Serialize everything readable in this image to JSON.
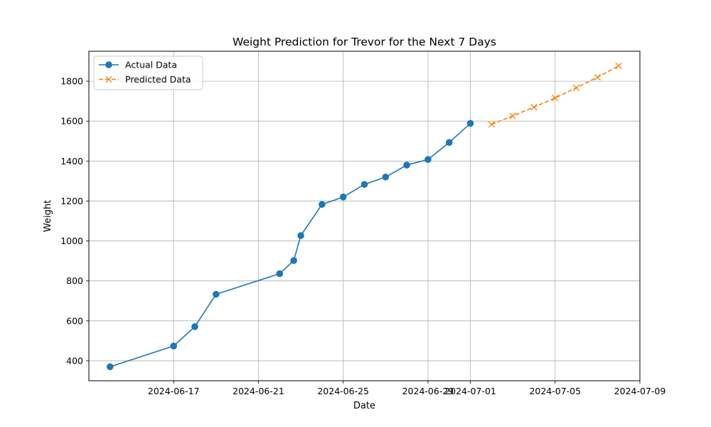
{
  "chart_data": {
    "type": "line",
    "title": "Weight Prediction for Trevor for the Next 7 Days",
    "xlabel": "Date",
    "ylabel": "Weight",
    "xlim": [
      "2024-06-13",
      "2024-07-09"
    ],
    "ylim": [
      300,
      1950
    ],
    "x_ticks": [
      "2024-06-17",
      "2024-06-21",
      "2024-06-25",
      "2024-06-29",
      "2024-07-01",
      "2024-07-05",
      "2024-07-09"
    ],
    "y_ticks": [
      400,
      600,
      800,
      1000,
      1200,
      1400,
      1600,
      1800
    ],
    "grid": true,
    "legend_position": "top-left",
    "series": [
      {
        "name": "Actual Data",
        "color": "#1f77b4",
        "line_style": "solid",
        "marker": "circle",
        "points": [
          {
            "x": "2024-06-14",
            "y": 370
          },
          {
            "x": "2024-06-17",
            "y": 474
          },
          {
            "x": "2024-06-18",
            "y": 571
          },
          {
            "x": "2024-06-19",
            "y": 733
          },
          {
            "x": "2024-06-22",
            "y": 836
          },
          {
            "x": "2024-06-22T16:00",
            "y": 902
          },
          {
            "x": "2024-06-23",
            "y": 1027
          },
          {
            "x": "2024-06-24",
            "y": 1183
          },
          {
            "x": "2024-06-25",
            "y": 1220
          },
          {
            "x": "2024-06-26",
            "y": 1283
          },
          {
            "x": "2024-06-27",
            "y": 1320
          },
          {
            "x": "2024-06-28",
            "y": 1380
          },
          {
            "x": "2024-06-29",
            "y": 1408
          },
          {
            "x": "2024-06-30",
            "y": 1493
          },
          {
            "x": "2024-07-01",
            "y": 1589
          }
        ]
      },
      {
        "name": "Predicted Data",
        "color": "#ff7f0e",
        "line_style": "dashed",
        "marker": "x",
        "points": [
          {
            "x": "2024-07-02",
            "y": 1584
          },
          {
            "x": "2024-07-03",
            "y": 1626
          },
          {
            "x": "2024-07-04",
            "y": 1670
          },
          {
            "x": "2024-07-05",
            "y": 1716
          },
          {
            "x": "2024-07-06",
            "y": 1767
          },
          {
            "x": "2024-07-07",
            "y": 1820
          },
          {
            "x": "2024-07-08",
            "y": 1877
          }
        ]
      }
    ]
  }
}
